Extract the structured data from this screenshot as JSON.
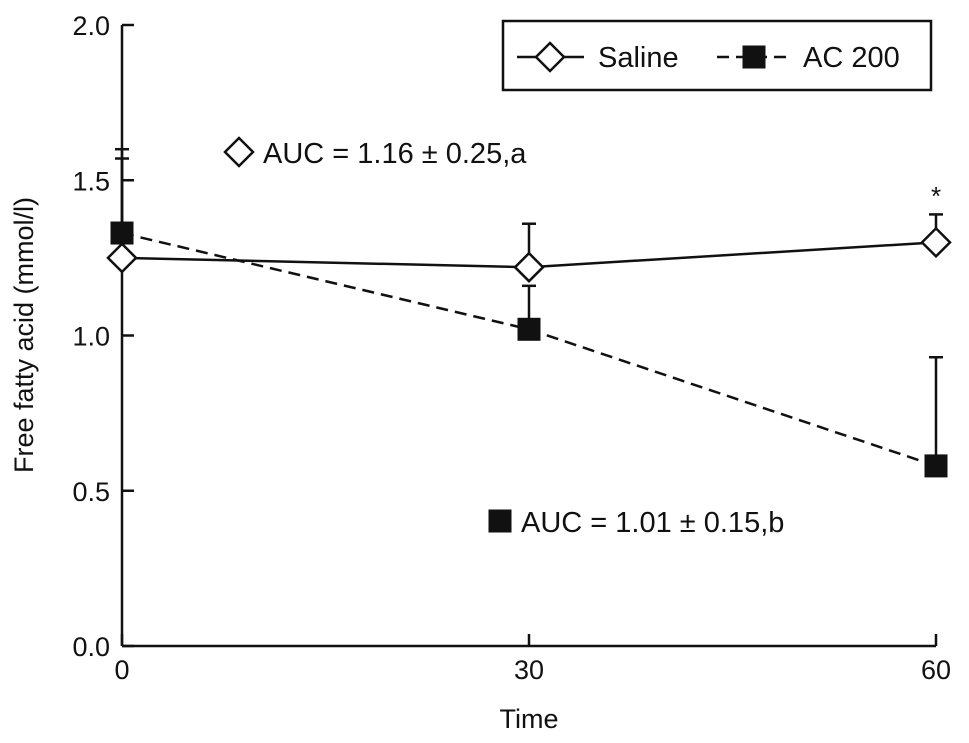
{
  "chart_data": {
    "type": "line",
    "title": "",
    "xlabel": "Time",
    "ylabel": "Free fatty acid (mmol/l)",
    "x": [
      0,
      30,
      60
    ],
    "x_ticks": [
      "0",
      "30",
      "60"
    ],
    "xlim": [
      0,
      60
    ],
    "ylim": [
      0,
      2.0
    ],
    "y_ticks": [
      "0.0",
      "0.5",
      "1.0",
      "1.5",
      "2.0"
    ],
    "grid": false,
    "legend_position": "top-right",
    "series": [
      {
        "name": "Saline",
        "values": [
          1.25,
          1.22,
          1.3
        ],
        "error": [
          0.32,
          0.14,
          0.09
        ],
        "error_direction": "up",
        "marker": "diamond-open",
        "line_style": "solid",
        "color": "#111111"
      },
      {
        "name": "AC 200",
        "values": [
          1.33,
          1.02,
          0.58
        ],
        "error": [
          0.27,
          0.14,
          0.35
        ],
        "error_direction": "up",
        "marker": "square-filled",
        "line_style": "dashed",
        "color": "#111111"
      }
    ],
    "annotations": [
      {
        "text": "AUC = 1.16 ± 0.25,a",
        "series": "Saline"
      },
      {
        "text": "AUC = 1.01 ± 0.15,b",
        "series": "AC 200"
      },
      {
        "text": "*",
        "series": "Saline",
        "x": 60
      }
    ]
  }
}
